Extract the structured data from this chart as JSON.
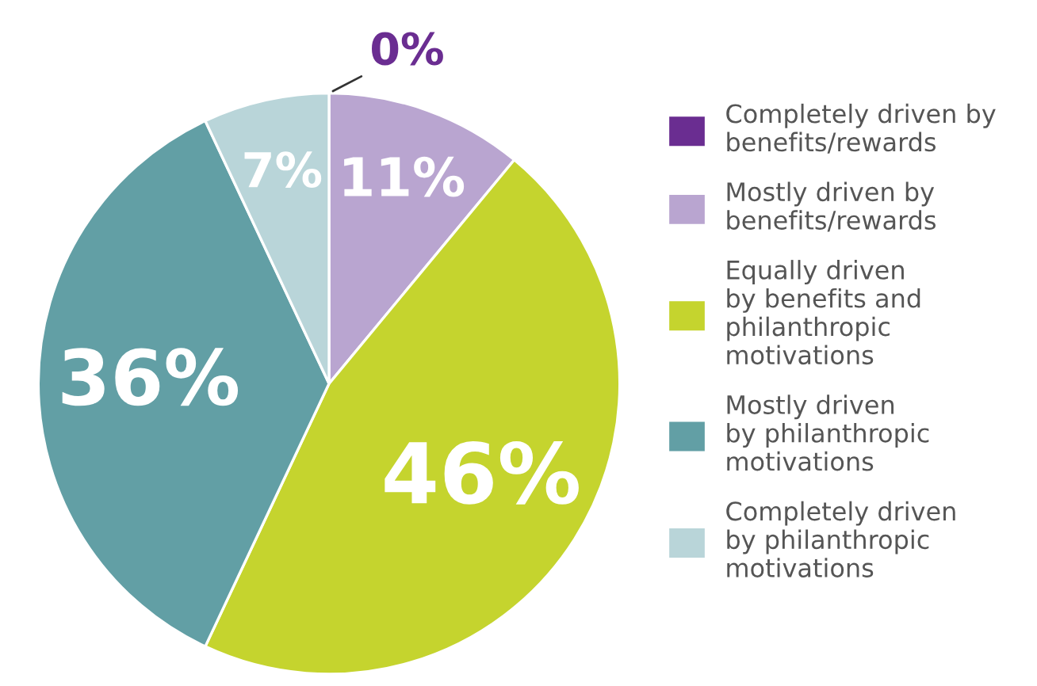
{
  "chart_data": {
    "type": "pie",
    "categories": [
      "Completely driven by\nbenefits/rewards",
      "Mostly driven by\nbenefits/rewards",
      "Equally driven\nby benefits and\nphilanthropic\nmotivations",
      "Mostly driven\nby philanthropic\nmotivations",
      "Completely driven\nby philanthropic\nmotivations"
    ],
    "values": [
      0,
      11,
      46,
      36,
      7
    ],
    "colors": [
      "#6a2d91",
      "#b9a5d0",
      "#c5d42e",
      "#629fa5",
      "#b9d5d9"
    ],
    "value_labels": [
      "0%",
      "11%",
      "46%",
      "36%",
      "7%"
    ],
    "legend": "right"
  }
}
